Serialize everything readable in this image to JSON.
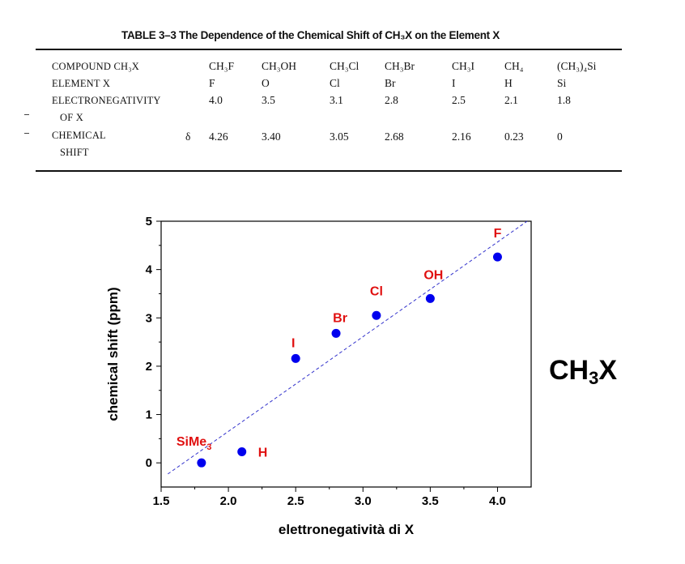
{
  "table": {
    "title": "TABLE 3–3   The Dependence of the Chemical Shift of CH₃X on the Element X",
    "row_labels": {
      "compound": "COMPOUND CH₃X",
      "element": "ELEMENT X",
      "electronegativity_1": "ELECTRONEGATIVITY",
      "electronegativity_2": "OF X",
      "shift_1": "CHEMICAL",
      "shift_2": "SHIFT",
      "delta": "δ"
    },
    "compounds": [
      "CH₃F",
      "CH₃OH",
      "CH₃Cl",
      "CH₃Br",
      "CH₃I",
      "CH₄",
      "(CH₃)₄Si"
    ],
    "elements": [
      "F",
      "O",
      "Cl",
      "Br",
      "I",
      "H",
      "Si"
    ],
    "electronegativity": [
      "4.0",
      "3.5",
      "3.1",
      "2.8",
      "2.5",
      "2.1",
      "1.8"
    ],
    "chemical_shift": [
      "4.26",
      "3.40",
      "3.05",
      "2.68",
      "2.16",
      "0.23",
      "0"
    ]
  },
  "chart_data": {
    "type": "scatter",
    "xlabel": "elettronegatività di X",
    "ylabel": "chemical shift (ppm)",
    "xlim": [
      1.5,
      4.25
    ],
    "ylim": [
      -0.5,
      5
    ],
    "xticks": [
      "1.5",
      "2.0",
      "2.5",
      "3.0",
      "3.5",
      "4.0"
    ],
    "yticks": [
      "0",
      "1",
      "2",
      "3",
      "4",
      "5"
    ],
    "grid": false,
    "points": [
      {
        "label": "F",
        "x": 4.0,
        "y": 4.26
      },
      {
        "label": "OH",
        "x": 3.5,
        "y": 3.4
      },
      {
        "label": "Cl",
        "x": 3.1,
        "y": 3.05
      },
      {
        "label": "Br",
        "x": 2.8,
        "y": 2.68
      },
      {
        "label": "I",
        "x": 2.5,
        "y": 2.16
      },
      {
        "label": "H",
        "x": 2.1,
        "y": 0.23
      },
      {
        "label": "SiMe3",
        "x": 1.8,
        "y": 0
      }
    ],
    "trendline": {
      "style": "dashed",
      "x": [
        1.55,
        4.22
      ],
      "y": [
        -0.23,
        5.0
      ]
    },
    "colors": {
      "points": "#0000ee",
      "labels": "#e01010",
      "trendline": "#3333cc"
    }
  },
  "formula": {
    "main": "CH",
    "sub": "3",
    "end": "X"
  }
}
